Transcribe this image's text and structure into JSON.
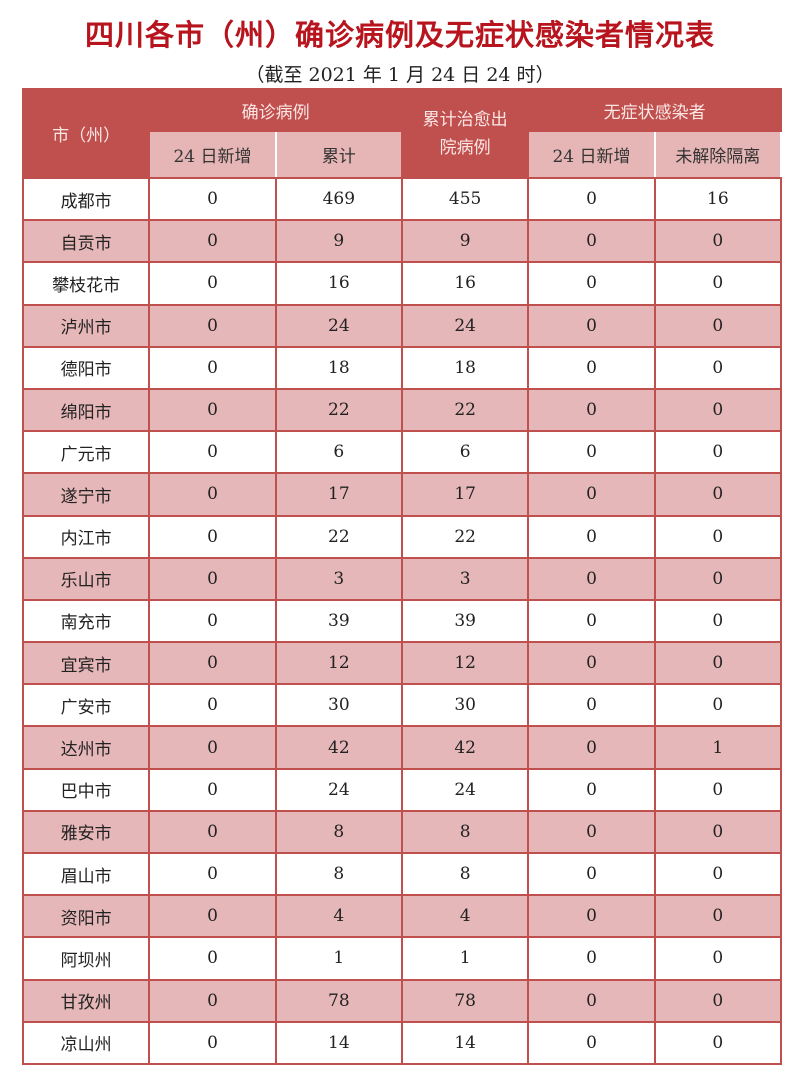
{
  "title": "四川各市（州）确诊病例及无症状感染者情况表",
  "subtitle": "（截至 2021 年 1 月 24 日 24 时）",
  "header": {
    "city": "市（州）",
    "confirmed": "确诊病例",
    "recovered": "累计治愈出院病例",
    "asymptomatic": "无症状感染者",
    "confirmed_new": "24 日新增",
    "confirmed_total": "累计",
    "asym_new": "24 日新增",
    "asym_isolated": "未解除隔离"
  },
  "colors": {
    "title": "#b8141e",
    "header": "#c0504d",
    "subheader": "#e6b5b5",
    "stripe": "#e6b7b8"
  },
  "rows": [
    [
      "成都市",
      "0",
      "469",
      "455",
      "0",
      "16"
    ],
    [
      "自贡市",
      "0",
      "9",
      "9",
      "0",
      "0"
    ],
    [
      "攀枝花市",
      "0",
      "16",
      "16",
      "0",
      "0"
    ],
    [
      "泸州市",
      "0",
      "24",
      "24",
      "0",
      "0"
    ],
    [
      "德阳市",
      "0",
      "18",
      "18",
      "0",
      "0"
    ],
    [
      "绵阳市",
      "0",
      "22",
      "22",
      "0",
      "0"
    ],
    [
      "广元市",
      "0",
      "6",
      "6",
      "0",
      "0"
    ],
    [
      "遂宁市",
      "0",
      "17",
      "17",
      "0",
      "0"
    ],
    [
      "内江市",
      "0",
      "22",
      "22",
      "0",
      "0"
    ],
    [
      "乐山市",
      "0",
      "3",
      "3",
      "0",
      "0"
    ],
    [
      "南充市",
      "0",
      "39",
      "39",
      "0",
      "0"
    ],
    [
      "宜宾市",
      "0",
      "12",
      "12",
      "0",
      "0"
    ],
    [
      "广安市",
      "0",
      "30",
      "30",
      "0",
      "0"
    ],
    [
      "达州市",
      "0",
      "42",
      "42",
      "0",
      "1"
    ],
    [
      "巴中市",
      "0",
      "24",
      "24",
      "0",
      "0"
    ],
    [
      "雅安市",
      "0",
      "8",
      "8",
      "0",
      "0"
    ],
    [
      "眉山市",
      "0",
      "8",
      "8",
      "0",
      "0"
    ],
    [
      "资阳市",
      "0",
      "4",
      "4",
      "0",
      "0"
    ],
    [
      "阿坝州",
      "0",
      "1",
      "1",
      "0",
      "0"
    ],
    [
      "甘孜州",
      "0",
      "78",
      "78",
      "0",
      "0"
    ],
    [
      "凉山州",
      "0",
      "14",
      "14",
      "0",
      "0"
    ]
  ]
}
